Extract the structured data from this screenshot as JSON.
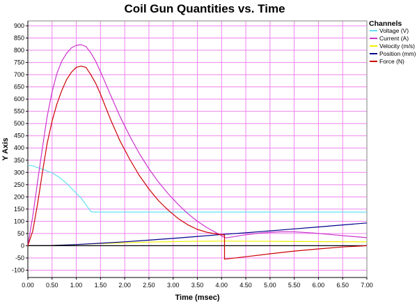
{
  "chart_data": {
    "type": "line",
    "title": "Coil Gun Quantities vs. Time",
    "xlabel": "Time (msec)",
    "ylabel": "Y Axis",
    "xlim": [
      0,
      7
    ],
    "ylim": [
      -130,
      920
    ],
    "x_ticks": [
      "0.00",
      "0.50",
      "1.00",
      "1.50",
      "2.00",
      "2.50",
      "3.00",
      "3.50",
      "4.00",
      "4.50",
      "5.00",
      "5.50",
      "6.00",
      "6.50",
      "7.00"
    ],
    "y_ticks": [
      "900",
      "850",
      "800",
      "750",
      "700",
      "650",
      "600",
      "550",
      "500",
      "450",
      "400",
      "350",
      "300",
      "250",
      "200",
      "150",
      "100",
      "50",
      "0",
      "-50",
      "-100"
    ],
    "grid": true,
    "grid_color": "#ee82ee",
    "legend_title": "Channels",
    "legend_position": "top-right",
    "series": [
      {
        "name": "Voltage (V)",
        "color": "#66e0f0",
        "points": [
          [
            0,
            330
          ],
          [
            0.1,
            327
          ],
          [
            0.2,
            320
          ],
          [
            0.35,
            310
          ],
          [
            0.5,
            298
          ],
          [
            0.65,
            280
          ],
          [
            0.8,
            255
          ],
          [
            0.95,
            225
          ],
          [
            1.1,
            195
          ],
          [
            1.2,
            168
          ],
          [
            1.3,
            140
          ],
          [
            1.35,
            138
          ],
          [
            7,
            138
          ]
        ]
      },
      {
        "name": "Current (A)",
        "color": "#cc33cc",
        "points": [
          [
            0,
            0
          ],
          [
            0.1,
            120
          ],
          [
            0.2,
            260
          ],
          [
            0.3,
            400
          ],
          [
            0.4,
            530
          ],
          [
            0.5,
            630
          ],
          [
            0.6,
            705
          ],
          [
            0.7,
            755
          ],
          [
            0.8,
            788
          ],
          [
            0.9,
            810
          ],
          [
            1.0,
            820
          ],
          [
            1.1,
            823
          ],
          [
            1.2,
            815
          ],
          [
            1.3,
            790
          ],
          [
            1.4,
            755
          ],
          [
            1.5,
            712
          ],
          [
            1.7,
            620
          ],
          [
            1.9,
            530
          ],
          [
            2.1,
            450
          ],
          [
            2.3,
            378
          ],
          [
            2.5,
            315
          ],
          [
            2.7,
            260
          ],
          [
            2.9,
            212
          ],
          [
            3.1,
            170
          ],
          [
            3.3,
            132
          ],
          [
            3.5,
            100
          ],
          [
            3.7,
            74
          ],
          [
            3.9,
            52
          ],
          [
            4.05,
            35
          ],
          [
            4.1,
            32
          ],
          [
            4.4,
            42
          ],
          [
            4.8,
            52
          ],
          [
            5.2,
            57
          ],
          [
            5.5,
            57
          ],
          [
            5.9,
            52
          ],
          [
            6.3,
            45
          ],
          [
            6.7,
            38
          ],
          [
            7.0,
            33
          ]
        ]
      },
      {
        "name": "Velocity (m/s)",
        "color": "#f0f000",
        "points": [
          [
            0,
            0
          ],
          [
            0.3,
            0.5
          ],
          [
            0.6,
            2
          ],
          [
            1.0,
            5
          ],
          [
            1.5,
            9
          ],
          [
            2.0,
            12
          ],
          [
            2.5,
            15
          ],
          [
            3.0,
            17
          ],
          [
            3.5,
            18.5
          ],
          [
            4.05,
            19
          ],
          [
            5.0,
            18
          ],
          [
            6.0,
            17
          ],
          [
            7.0,
            16
          ]
        ]
      },
      {
        "name": "Position (mm)",
        "color": "#00008b",
        "points": [
          [
            0,
            0
          ],
          [
            0.5,
            1
          ],
          [
            1.0,
            5
          ],
          [
            1.5,
            10
          ],
          [
            2.0,
            16
          ],
          [
            2.5,
            23
          ],
          [
            3.0,
            30
          ],
          [
            3.5,
            38
          ],
          [
            4.0,
            46
          ],
          [
            4.5,
            53
          ],
          [
            5.0,
            61
          ],
          [
            5.5,
            69
          ],
          [
            6.0,
            77
          ],
          [
            6.5,
            85
          ],
          [
            7.0,
            93
          ]
        ]
      },
      {
        "name": "Force (N)",
        "color": "#cc0000",
        "points": [
          [
            0,
            0
          ],
          [
            0.1,
            60
          ],
          [
            0.2,
            170
          ],
          [
            0.3,
            300
          ],
          [
            0.4,
            420
          ],
          [
            0.5,
            510
          ],
          [
            0.6,
            580
          ],
          [
            0.7,
            635
          ],
          [
            0.8,
            680
          ],
          [
            0.9,
            710
          ],
          [
            1.0,
            730
          ],
          [
            1.1,
            735
          ],
          [
            1.2,
            730
          ],
          [
            1.3,
            700
          ],
          [
            1.4,
            665
          ],
          [
            1.5,
            620
          ],
          [
            1.7,
            520
          ],
          [
            1.9,
            430
          ],
          [
            2.1,
            355
          ],
          [
            2.3,
            288
          ],
          [
            2.5,
            232
          ],
          [
            2.7,
            184
          ],
          [
            2.9,
            145
          ],
          [
            3.1,
            112
          ],
          [
            3.3,
            86
          ],
          [
            3.5,
            67
          ],
          [
            3.7,
            55
          ],
          [
            3.9,
            48
          ],
          [
            4.06,
            44
          ],
          [
            4.06,
            -55
          ],
          [
            4.5,
            -45
          ],
          [
            5.0,
            -33
          ],
          [
            5.5,
            -22
          ],
          [
            6.0,
            -13
          ],
          [
            6.5,
            -5
          ],
          [
            7.0,
            0
          ]
        ]
      },
      {
        "name": "",
        "color": "#000000",
        "points": [
          [
            0,
            0
          ],
          [
            7,
            0
          ]
        ]
      }
    ]
  }
}
